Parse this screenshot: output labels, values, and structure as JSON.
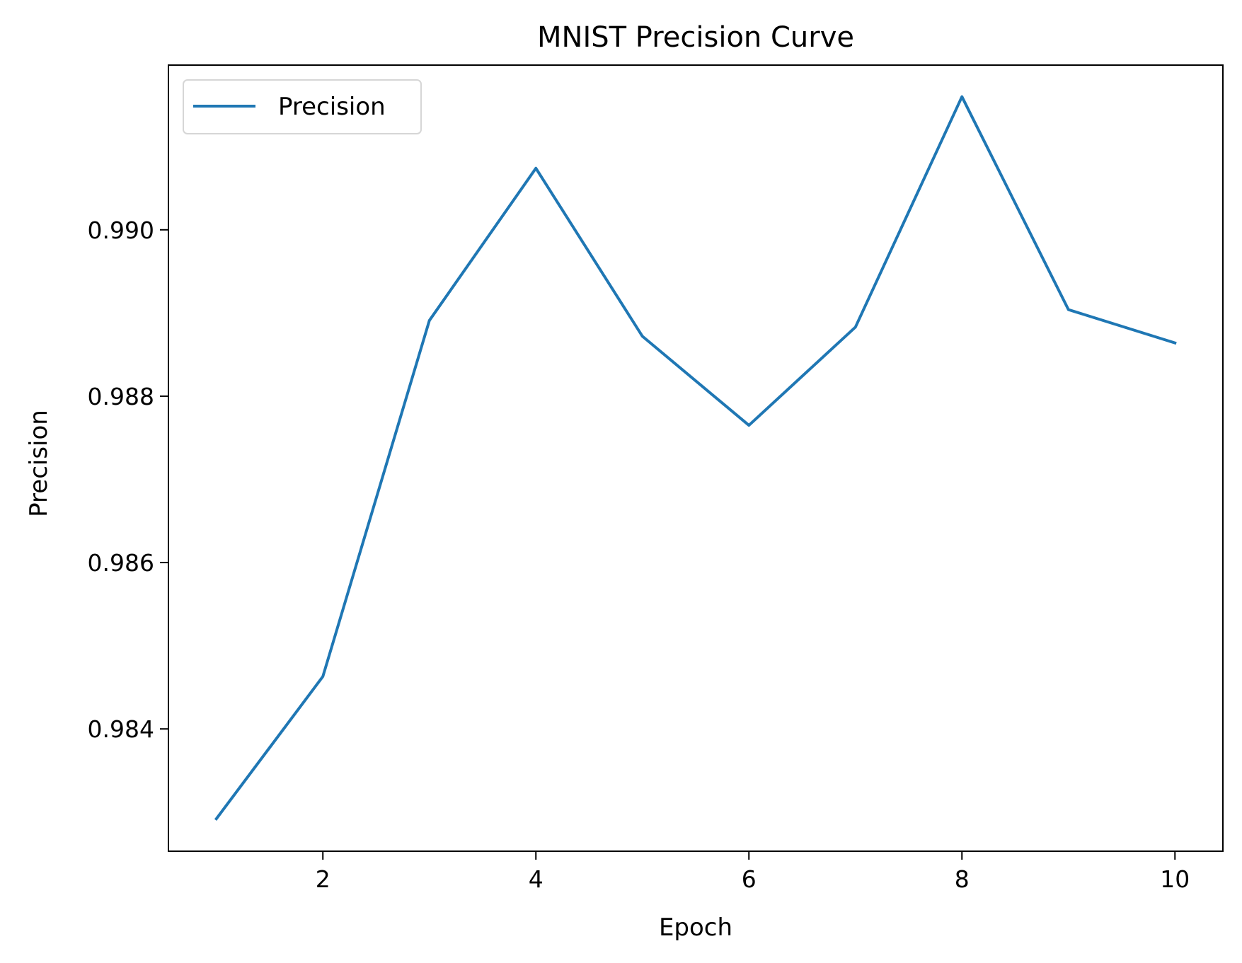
{
  "chart_data": {
    "type": "line",
    "title": "MNIST Precision Curve",
    "xlabel": "Epoch",
    "ylabel": "Precision",
    "x": [
      1,
      2,
      3,
      4,
      5,
      6,
      7,
      8,
      9,
      10
    ],
    "series": [
      {
        "name": "Precision",
        "color": "#1f77b4",
        "values": [
          0.98292,
          0.98463,
          0.98891,
          0.99074,
          0.98872,
          0.98765,
          0.98883,
          0.9916,
          0.98904,
          0.98864
        ]
      }
    ],
    "xlim": [
      0.55,
      10.45
    ],
    "ylim": [
      0.98253,
      0.99198
    ],
    "x_ticks": [
      2,
      4,
      6,
      8,
      10
    ],
    "x_tick_labels": [
      "2",
      "4",
      "6",
      "8",
      "10"
    ],
    "y_ticks": [
      0.984,
      0.986,
      0.988,
      0.99
    ],
    "y_tick_labels": [
      "0.984",
      "0.986",
      "0.988",
      "0.990"
    ],
    "grid": false,
    "legend_position": "upper-left"
  }
}
